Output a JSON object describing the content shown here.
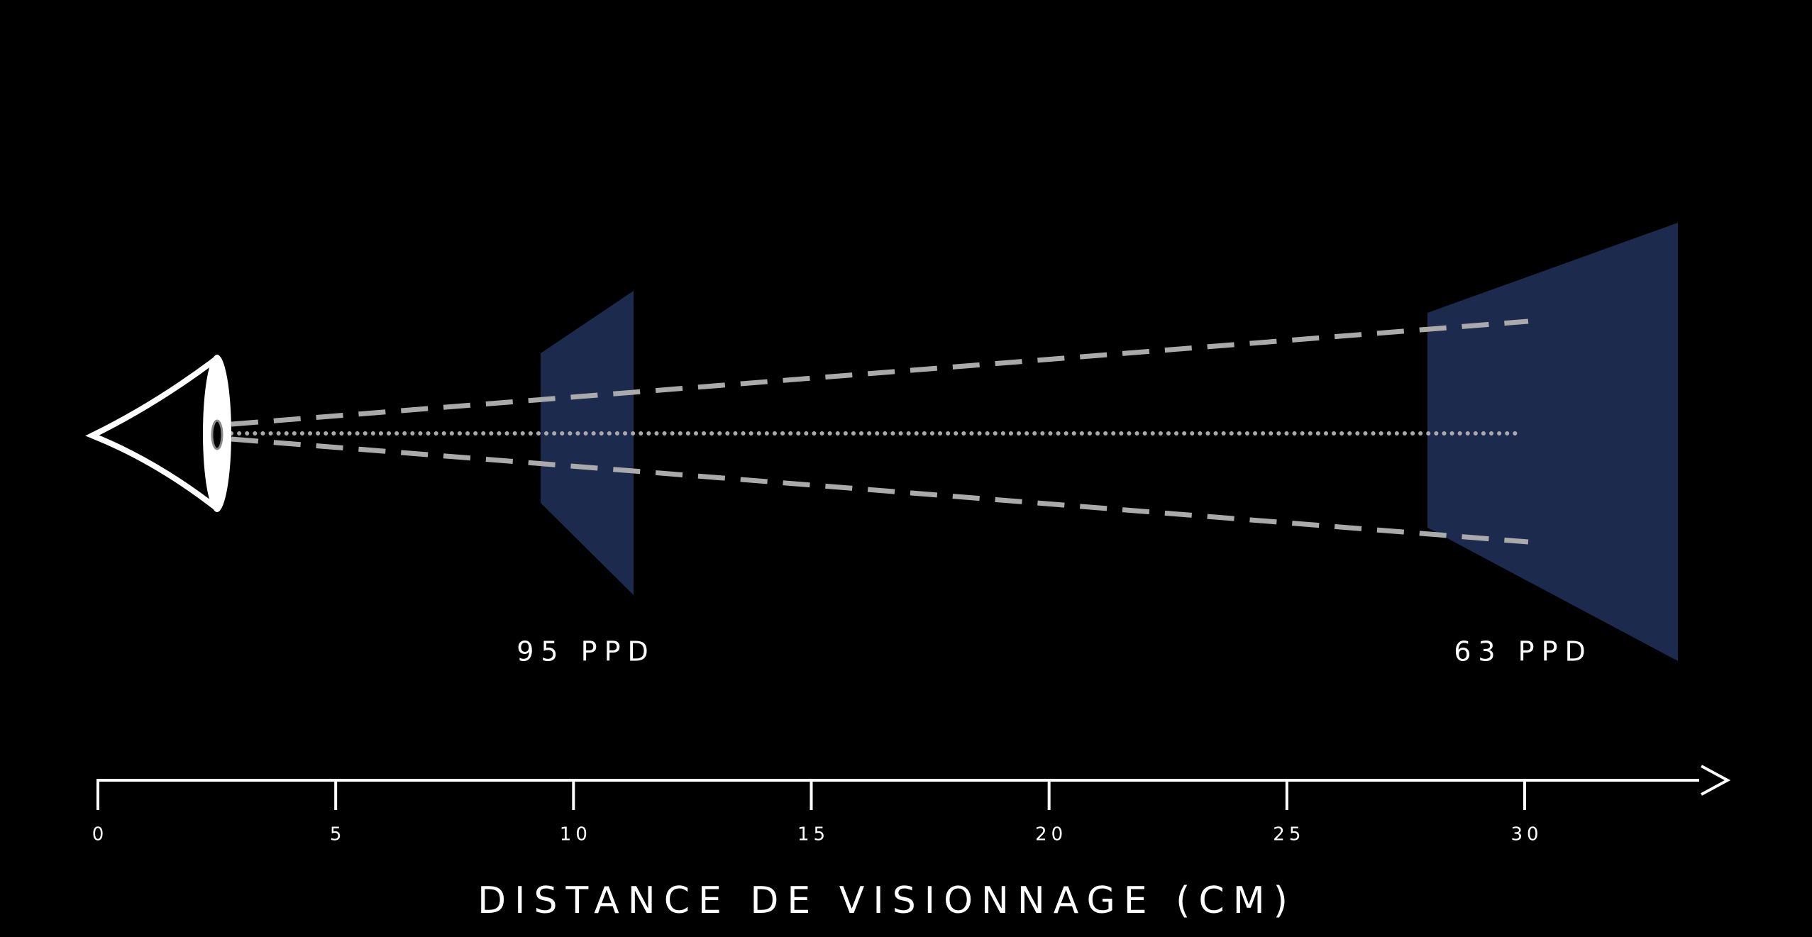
{
  "labels": [
    "95 PPD",
    "63 PPD"
  ],
  "axis": {
    "title": "DISTANCE DE VISIONNAGE (CM)",
    "ticks": [
      0,
      5,
      10,
      15,
      20,
      25,
      30
    ]
  }
}
